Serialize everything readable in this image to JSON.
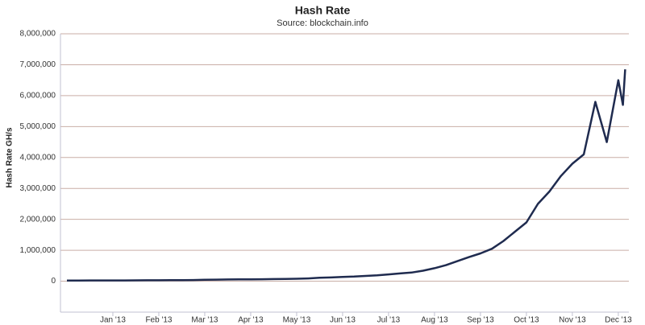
{
  "chart_data": {
    "type": "line",
    "title": "Hash Rate",
    "subtitle": "Source: blockchain.info",
    "y_label": "Hash Rate GH/s",
    "color": "#1f2b4f",
    "grid": true,
    "x": [
      0,
      0.25,
      0.5,
      0.75,
      1,
      1.25,
      1.5,
      1.75,
      2,
      2.25,
      2.5,
      2.75,
      3,
      3.25,
      3.5,
      3.75,
      4,
      4.25,
      4.5,
      4.75,
      5,
      5.25,
      5.5,
      5.75,
      6,
      6.25,
      6.5,
      6.75,
      7,
      7.25,
      7.5,
      7.75,
      8,
      8.25,
      8.5,
      8.75,
      9,
      9.25,
      9.5,
      9.75,
      10,
      10.25,
      10.5,
      10.75,
      11,
      11.25,
      11.5,
      11.75,
      12,
      12.1,
      12.15
    ],
    "values": [
      22000,
      23000,
      24000,
      25000,
      25000,
      26000,
      28000,
      29000,
      30000,
      32000,
      35000,
      38000,
      45000,
      50000,
      55000,
      60000,
      62000,
      65000,
      68000,
      72000,
      80000,
      90000,
      110000,
      120000,
      140000,
      150000,
      170000,
      190000,
      220000,
      250000,
      280000,
      340000,
      420000,
      520000,
      650000,
      780000,
      900000,
      1050000,
      1300000,
      1600000,
      1900000,
      2500000,
      2900000,
      3400000,
      3800000,
      4100000,
      5800000,
      4500000,
      6500000,
      5700000,
      6850000
    ],
    "xlim": [
      -0.14,
      12.23
    ],
    "xticks": [
      {
        "value": 1,
        "label": "Jan '13"
      },
      {
        "value": 2,
        "label": "Feb '13"
      },
      {
        "value": 3,
        "label": "Mar '13"
      },
      {
        "value": 4,
        "label": "Apr '13"
      },
      {
        "value": 5,
        "label": "May '13"
      },
      {
        "value": 6,
        "label": "Jun '13"
      },
      {
        "value": 7,
        "label": "Jul '13"
      },
      {
        "value": 8,
        "label": "Aug '13"
      },
      {
        "value": 9,
        "label": "Sep '13"
      },
      {
        "value": 10,
        "label": "Oct '13"
      },
      {
        "value": 11,
        "label": "Nov '13"
      },
      {
        "value": 12,
        "label": "Dec '13"
      }
    ],
    "ylim": [
      -1000000,
      8000000
    ],
    "yticks": [
      0,
      {
        "value": 1000000,
        "label": "1,000,000"
      },
      {
        "value": 2000000,
        "label": "2,000,000"
      },
      {
        "value": 3000000,
        "label": "3,000,000"
      },
      {
        "value": 4000000,
        "label": "4,000,000"
      },
      {
        "value": 5000000,
        "label": "5,000,000"
      },
      {
        "value": 6000000,
        "label": "6,000,000"
      },
      {
        "value": 7000000,
        "label": "7,000,000"
      },
      {
        "value": 8000000,
        "label": "8,000,000"
      }
    ]
  }
}
